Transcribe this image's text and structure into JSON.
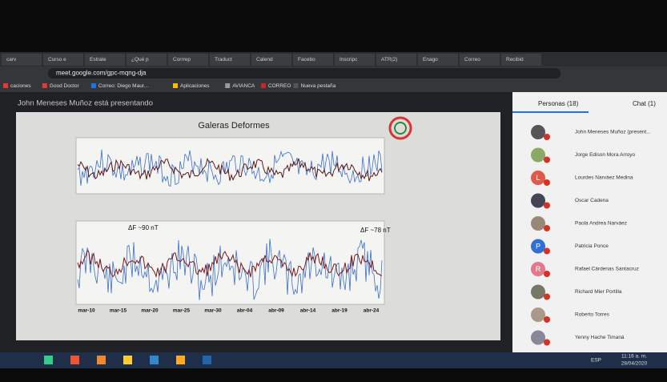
{
  "browser": {
    "tabs": [
      "carv",
      "Curso e",
      "Estrate",
      "¿Qué p",
      "Corrrep",
      "Traduct",
      "Calend",
      "Facebo",
      "Inscripc",
      "ATR(2)",
      "Enago",
      "Correo",
      "Recibid"
    ],
    "url": "meet.google.com/gpc-mqng-dja",
    "bookmarks": [
      "caciones",
      "Good Doctor",
      "Correo: Diego Maur...",
      "Aplicaciones",
      "AVIANCA",
      "CORREO",
      "Nueva pestaña"
    ]
  },
  "meeting": {
    "presenter_banner": "John Meneses Muñoz está presentando",
    "people_tab": "Personas (18)",
    "chat_tab": "Chat (1)",
    "participants": [
      {
        "name": "John Meneses Muñoz (present..."
      },
      {
        "name": "Jorge Edison Mora Arroyo"
      },
      {
        "name": "Lourdes Narváez Medina",
        "initial": "L"
      },
      {
        "name": "Oscar Cadena"
      },
      {
        "name": "Paola Andrea Narváez"
      },
      {
        "name": "Patricia Ponce",
        "initial": "P"
      },
      {
        "name": "Rafael Cárdenas Santacruz",
        "initial": "R"
      },
      {
        "name": "Richard Mier Portilla"
      },
      {
        "name": "Roberto Torres"
      },
      {
        "name": "Yenny Hache Timaná"
      }
    ]
  },
  "slide": {
    "title": "Galeras Deformes",
    "annotation_left": "ΔF ~90 nT",
    "annotation_right": "ΔF ~78 nT",
    "x_labels": [
      "mar-10",
      "mar-15",
      "mar-20",
      "mar-25",
      "mar-30",
      "abr-04",
      "abr-09",
      "abr-14",
      "abr-19",
      "abr-24"
    ]
  },
  "taskbar": {
    "language": "ESP",
    "time": "11:16 a. m.",
    "date": "28/04/2020"
  }
}
